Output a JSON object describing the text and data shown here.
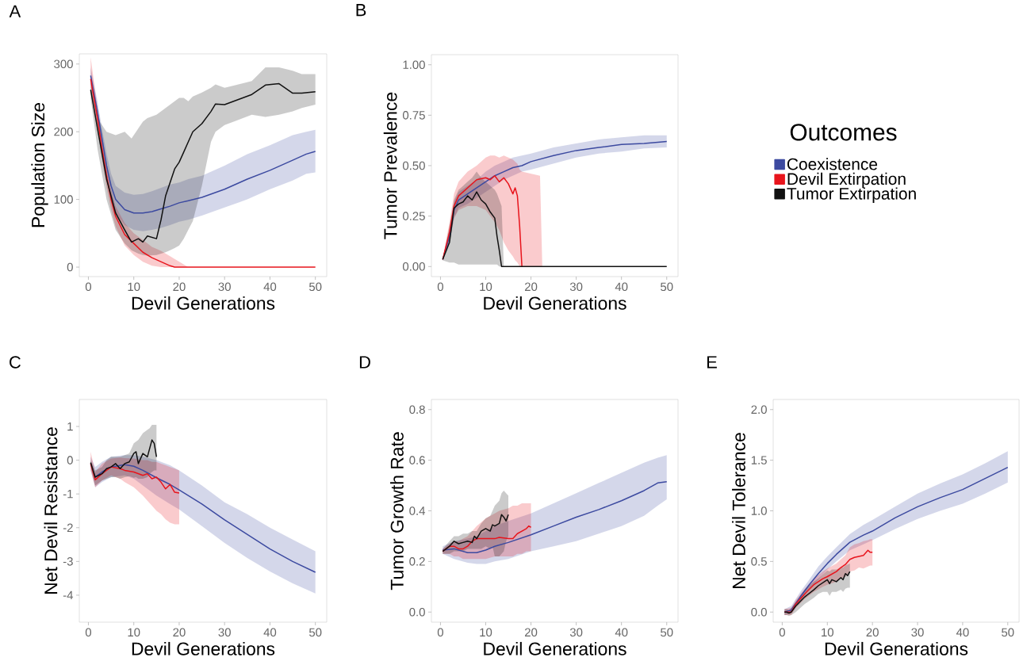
{
  "chart_data": [
    {
      "type": "line",
      "title": "A",
      "xlabel": "Devil Generations",
      "ylabel": "Population Size",
      "xlim": [
        -2,
        52.5
      ],
      "ylim": [
        -14,
        315
      ],
      "xticks": [
        0,
        10,
        20,
        30,
        40,
        50
      ],
      "yticks": [
        0,
        100,
        200,
        300
      ],
      "legend": false,
      "series": [
        {
          "color": "#3c4aa0",
          "x": [
            0.5,
            2,
            3,
            4,
            5,
            6,
            8,
            10,
            12,
            14,
            16,
            18,
            20,
            22,
            25,
            30,
            35,
            40,
            45,
            48,
            50
          ],
          "values": [
            283,
            230,
            190,
            150,
            120,
            100,
            85,
            80,
            80,
            82,
            86,
            90,
            95,
            98,
            103,
            115,
            130,
            143,
            158,
            167,
            171
          ],
          "lower": [
            270,
            215,
            175,
            135,
            105,
            80,
            62,
            55,
            53,
            55,
            58,
            62,
            67,
            70,
            76,
            88,
            100,
            115,
            128,
            138,
            140
          ],
          "upper": [
            295,
            245,
            205,
            168,
            138,
            120,
            110,
            107,
            108,
            112,
            117,
            122,
            125,
            130,
            135,
            150,
            167,
            180,
            195,
            200,
            203
          ]
        },
        {
          "color": "#e8141c",
          "x": [
            0.5,
            2,
            3,
            4,
            5,
            6,
            8,
            10,
            12,
            14,
            16,
            18,
            19,
            22,
            30,
            40,
            50
          ],
          "values": [
            278,
            220,
            175,
            135,
            100,
            75,
            48,
            35,
            22,
            14,
            8,
            2,
            0,
            0,
            0,
            0,
            0
          ],
          "lower": [
            265,
            205,
            160,
            118,
            85,
            60,
            32,
            18,
            8,
            2,
            0,
            0,
            0,
            0,
            0,
            0,
            0
          ],
          "upper": [
            310,
            235,
            190,
            150,
            115,
            90,
            65,
            50,
            40,
            30,
            24,
            16,
            12,
            0,
            0,
            0,
            0
          ]
        },
        {
          "color": "#111111",
          "x": [
            0.5,
            2,
            4,
            6,
            8,
            9.5,
            11,
            12,
            13,
            15,
            16,
            17,
            18,
            19,
            20,
            21,
            22,
            23,
            25,
            27,
            28,
            30,
            32,
            36,
            39,
            42,
            45,
            47,
            50
          ],
          "values": [
            262,
            205,
            130,
            80,
            55,
            37,
            42,
            37,
            46,
            42,
            70,
            105,
            125,
            145,
            155,
            170,
            185,
            200,
            212,
            230,
            241,
            240,
            245,
            255,
            269,
            271,
            257,
            257,
            259
          ],
          "lower": [
            250,
            175,
            100,
            55,
            35,
            25,
            20,
            18,
            17,
            18,
            20,
            22,
            25,
            28,
            32,
            42,
            55,
            68,
            120,
            185,
            200,
            210,
            215,
            225,
            222,
            225,
            230,
            235,
            240
          ],
          "upper": [
            275,
            220,
            200,
            195,
            200,
            190,
            205,
            215,
            220,
            225,
            230,
            235,
            240,
            245,
            250,
            250,
            245,
            252,
            258,
            265,
            270,
            265,
            268,
            275,
            295,
            295,
            290,
            285,
            285
          ]
        }
      ]
    },
    {
      "type": "line",
      "title": "B",
      "xlabel": "Devil Generations",
      "ylabel": "Tumor Prevalence",
      "xlim": [
        -2,
        52.5
      ],
      "ylim": [
        -0.05,
        1.05
      ],
      "xticks": [
        0,
        10,
        20,
        30,
        40,
        50
      ],
      "yticks": [
        {
          "value": 0,
          "label": "0.00"
        },
        {
          "value": 0.25,
          "label": "0.25"
        },
        {
          "value": 0.5,
          "label": "0.50"
        },
        {
          "value": 0.75,
          "label": "0.75"
        },
        {
          "value": 1,
          "label": "1.00"
        }
      ],
      "legend": "right",
      "legend_title": "Outcomes",
      "series": [
        {
          "name": "Coexistence",
          "color": "#3c4aa0",
          "x": [
            0.5,
            2,
            3,
            4,
            6,
            8,
            10,
            12,
            14,
            16,
            18,
            20,
            25,
            30,
            35,
            40,
            45,
            50
          ],
          "values": [
            0.035,
            0.15,
            0.28,
            0.33,
            0.36,
            0.39,
            0.42,
            0.45,
            0.47,
            0.49,
            0.5,
            0.52,
            0.55,
            0.575,
            0.59,
            0.605,
            0.61,
            0.62
          ],
          "lower": [
            0.03,
            0.12,
            0.24,
            0.29,
            0.31,
            0.34,
            0.37,
            0.4,
            0.43,
            0.45,
            0.47,
            0.48,
            0.51,
            0.54,
            0.56,
            0.57,
            0.585,
            0.59
          ],
          "upper": [
            0.04,
            0.18,
            0.32,
            0.37,
            0.4,
            0.43,
            0.47,
            0.5,
            0.52,
            0.54,
            0.55,
            0.56,
            0.59,
            0.61,
            0.63,
            0.64,
            0.65,
            0.65
          ]
        },
        {
          "name": "Devil Extirpation",
          "color": "#e8141c",
          "x": [
            0.5,
            2,
            3,
            4,
            6,
            8,
            10,
            11,
            12,
            13,
            14,
            15,
            16,
            16.5,
            17,
            17.5,
            18,
            22,
            22.5,
            30,
            50
          ],
          "values": [
            0.035,
            0.17,
            0.3,
            0.35,
            0.39,
            0.43,
            0.44,
            0.43,
            0.45,
            0.42,
            0.44,
            0.41,
            0.36,
            0.39,
            0.35,
            0.2,
            0,
            null,
            null,
            null,
            null
          ],
          "lower": [
            0.03,
            0.12,
            0.24,
            0.28,
            0.3,
            0.3,
            0.28,
            0.25,
            0.22,
            0.18,
            0.12,
            0.08,
            0.05,
            0.03,
            0.02,
            0,
            0,
            0,
            0,
            0,
            0
          ],
          "upper": [
            0.04,
            0.22,
            0.36,
            0.42,
            0.47,
            0.5,
            0.54,
            0.55,
            0.55,
            0.54,
            0.55,
            0.54,
            0.53,
            0.52,
            0.51,
            0.48,
            0.47,
            0.45,
            0,
            0,
            0
          ]
        },
        {
          "name": "Tumor Extirpation",
          "color": "#111111",
          "x": [
            0.5,
            2,
            3,
            4,
            5,
            6,
            7,
            8,
            9,
            10,
            11,
            12,
            12.5,
            13,
            13.5,
            14,
            20,
            50
          ],
          "values": [
            0.035,
            0.12,
            0.29,
            0.31,
            0.32,
            0.35,
            0.33,
            0.37,
            0.33,
            0.31,
            0.27,
            0.24,
            0.15,
            0.08,
            0,
            0,
            0,
            0
          ],
          "lower": [
            0.03,
            0.02,
            0.02,
            0.01,
            0.01,
            0.01,
            0.01,
            0.01,
            0.01,
            0.01,
            0.01,
            0.01,
            0.01,
            0,
            0,
            0,
            0,
            0
          ],
          "upper": [
            0.04,
            0.2,
            0.33,
            0.38,
            0.4,
            0.42,
            0.44,
            0.47,
            0.44,
            0.42,
            0.4,
            0.38,
            0.36,
            0.33,
            0.3,
            0,
            0,
            0
          ]
        }
      ]
    },
    {
      "type": "line",
      "title": "C",
      "xlabel": "Devil Generations",
      "ylabel": "Net Devil Resistance",
      "xlim": [
        -2,
        52.5
      ],
      "ylim": [
        -4.8,
        1.8
      ],
      "xticks": [
        0,
        10,
        20,
        30,
        40,
        50
      ],
      "yticks": [
        -4,
        -3,
        -2,
        -1,
        0,
        1
      ],
      "legend": false,
      "series": [
        {
          "color": "#3c4aa0",
          "x": [
            0.5,
            1.5,
            3,
            5,
            8,
            10,
            12,
            15,
            18,
            20,
            25,
            30,
            35,
            40,
            45,
            50
          ],
          "values": [
            -0.1,
            -0.5,
            -0.35,
            -0.2,
            -0.13,
            -0.18,
            -0.3,
            -0.52,
            -0.72,
            -0.88,
            -1.3,
            -1.77,
            -2.2,
            -2.63,
            -3.0,
            -3.32
          ],
          "lower": [
            -0.3,
            -0.8,
            -0.65,
            -0.5,
            -0.45,
            -0.55,
            -0.75,
            -1.05,
            -1.3,
            -1.46,
            -1.95,
            -2.45,
            -2.9,
            -3.3,
            -3.65,
            -3.95
          ],
          "upper": [
            0.1,
            -0.2,
            -0.05,
            0.1,
            0.15,
            0.15,
            0.1,
            0.0,
            -0.15,
            -0.3,
            -0.75,
            -1.25,
            -1.6,
            -2.0,
            -2.35,
            -2.7
          ]
        },
        {
          "color": "#e8141c",
          "x": [
            0.5,
            1.5,
            3,
            5,
            7,
            8,
            10,
            12,
            13,
            14,
            15,
            16,
            17,
            18,
            19,
            20
          ],
          "values": [
            -0.1,
            -0.58,
            -0.4,
            -0.2,
            -0.25,
            -0.3,
            -0.35,
            -0.45,
            -0.4,
            -0.55,
            -0.5,
            -0.65,
            -0.85,
            -0.72,
            -0.95,
            -0.97
          ],
          "lower": [
            -0.3,
            -0.8,
            -0.6,
            -0.45,
            -0.55,
            -0.65,
            -0.8,
            -1.05,
            -1.2,
            -1.35,
            -1.5,
            -1.6,
            -1.75,
            -1.85,
            -1.9,
            -1.9
          ],
          "upper": [
            0.25,
            -0.35,
            -0.1,
            0.05,
            0.08,
            0.06,
            0.05,
            0.0,
            0.0,
            -0.05,
            -0.05,
            -0.1,
            -0.15,
            -0.2,
            -0.25,
            -0.3
          ]
        },
        {
          "color": "#111111",
          "x": [
            0.5,
            1.5,
            3,
            4,
            5,
            6,
            7,
            8,
            9,
            10,
            10.5,
            11,
            12,
            13,
            13.5,
            14,
            14.5,
            15
          ],
          "values": [
            -0.07,
            -0.5,
            -0.4,
            -0.25,
            -0.2,
            -0.1,
            -0.25,
            -0.1,
            -0.05,
            0.2,
            0.25,
            -0.1,
            0.2,
            0.1,
            0.35,
            0.6,
            0.5,
            0.1
          ],
          "lower": [
            -0.2,
            -0.75,
            -0.6,
            -0.55,
            -0.5,
            -0.5,
            -0.55,
            -0.5,
            -0.47,
            -0.52,
            -0.5,
            -0.55,
            -0.55,
            -0.5,
            -0.4,
            -0.35,
            -0.3,
            -0.3
          ],
          "upper": [
            0.0,
            -0.3,
            -0.2,
            0.0,
            0.1,
            0.1,
            0.1,
            0.15,
            0.2,
            0.5,
            0.55,
            0.6,
            0.8,
            0.9,
            0.95,
            1.05,
            1.05,
            1.05
          ]
        }
      ]
    },
    {
      "type": "line",
      "title": "D",
      "xlabel": "Devil Generations",
      "ylabel": "Tumor Growth Rate",
      "xlim": [
        -2,
        52.5
      ],
      "ylim": [
        -0.04,
        0.84
      ],
      "xticks": [
        0,
        10,
        20,
        30,
        40,
        50
      ],
      "yticks": [
        {
          "value": 0,
          "label": "0.0"
        },
        0.2,
        0.4,
        0.6,
        0.8
      ],
      "legend": false,
      "series": [
        {
          "color": "#3c4aa0",
          "x": [
            0.5,
            3,
            6,
            8,
            10,
            12,
            15,
            20,
            25,
            30,
            35,
            40,
            45,
            48,
            50
          ],
          "values": [
            0.245,
            0.25,
            0.235,
            0.235,
            0.245,
            0.26,
            0.275,
            0.305,
            0.34,
            0.375,
            0.405,
            0.44,
            0.48,
            0.51,
            0.515
          ],
          "lower": [
            0.23,
            0.21,
            0.195,
            0.19,
            0.19,
            0.2,
            0.21,
            0.24,
            0.26,
            0.28,
            0.31,
            0.34,
            0.38,
            0.42,
            0.445
          ],
          "upper": [
            0.26,
            0.28,
            0.29,
            0.3,
            0.32,
            0.34,
            0.36,
            0.39,
            0.43,
            0.47,
            0.51,
            0.55,
            0.59,
            0.61,
            0.62
          ]
        },
        {
          "color": "#e8141c",
          "x": [
            0.5,
            2,
            3,
            4,
            5,
            6,
            7,
            8,
            10,
            12,
            13,
            15,
            16,
            17,
            18,
            19,
            19.5,
            20
          ],
          "values": [
            0.24,
            0.26,
            0.26,
            0.25,
            0.25,
            0.26,
            0.28,
            0.29,
            0.29,
            0.29,
            0.295,
            0.29,
            0.29,
            0.31,
            0.32,
            0.33,
            0.34,
            0.335
          ],
          "lower": [
            0.23,
            0.23,
            0.22,
            0.22,
            0.21,
            0.21,
            0.21,
            0.21,
            0.21,
            0.22,
            0.22,
            0.22,
            0.22,
            0.23,
            0.23,
            0.24,
            0.24,
            0.24
          ],
          "upper": [
            0.25,
            0.27,
            0.28,
            0.28,
            0.29,
            0.3,
            0.32,
            0.34,
            0.37,
            0.39,
            0.4,
            0.41,
            0.42,
            0.42,
            0.43,
            0.43,
            0.43,
            0.43
          ]
        },
        {
          "color": "#111111",
          "x": [
            0.5,
            2,
            3,
            4,
            5,
            6,
            7,
            7.5,
            8,
            9,
            10,
            11,
            11.5,
            12,
            13,
            13.5,
            14,
            14.5,
            15
          ],
          "values": [
            0.24,
            0.26,
            0.28,
            0.27,
            0.275,
            0.28,
            0.275,
            0.3,
            0.29,
            0.32,
            0.33,
            0.32,
            0.345,
            0.34,
            0.35,
            0.385,
            0.375,
            0.36,
            0.385
          ],
          "lower": [
            0.23,
            0.23,
            0.24,
            0.24,
            0.24,
            0.25,
            0.25,
            0.25,
            0.25,
            0.25,
            0.26,
            0.25,
            0.26,
            0.22,
            0.22,
            0.23,
            0.24,
            0.28,
            0.3
          ],
          "upper": [
            0.25,
            0.28,
            0.3,
            0.3,
            0.31,
            0.31,
            0.32,
            0.32,
            0.32,
            0.35,
            0.37,
            0.38,
            0.4,
            0.42,
            0.44,
            0.47,
            0.48,
            0.47,
            0.46
          ]
        }
      ]
    },
    {
      "type": "line",
      "title": "E",
      "xlabel": "Devil Generations",
      "ylabel": "Net Devil Tolerance",
      "xlim": [
        -2,
        52.5
      ],
      "ylim": [
        -0.1,
        2.1
      ],
      "xticks": [
        0,
        10,
        20,
        30,
        40,
        50
      ],
      "yticks": [
        {
          "value": 0,
          "label": "0.0"
        },
        0.5,
        {
          "value": 1,
          "label": "1.0"
        },
        1.5,
        {
          "value": 2,
          "label": "2.0"
        }
      ],
      "legend": false,
      "series": [
        {
          "color": "#3c4aa0",
          "x": [
            0.5,
            2,
            4,
            6,
            8,
            10,
            12,
            15,
            18,
            20,
            25,
            30,
            35,
            40,
            45,
            50
          ],
          "values": [
            0.0,
            0.02,
            0.15,
            0.27,
            0.38,
            0.48,
            0.57,
            0.69,
            0.76,
            0.8,
            0.93,
            1.04,
            1.13,
            1.21,
            1.32,
            1.43
          ],
          "lower": [
            -0.03,
            -0.01,
            0.11,
            0.22,
            0.32,
            0.42,
            0.5,
            0.61,
            0.67,
            0.71,
            0.82,
            0.92,
            1.0,
            1.07,
            1.17,
            1.28
          ],
          "upper": [
            0.03,
            0.06,
            0.2,
            0.32,
            0.45,
            0.55,
            0.64,
            0.77,
            0.86,
            0.91,
            1.04,
            1.17,
            1.27,
            1.36,
            1.47,
            1.59
          ]
        },
        {
          "color": "#e8141c",
          "x": [
            0.5,
            2,
            3,
            5,
            7,
            9,
            10,
            12,
            13,
            14,
            15,
            16,
            17,
            18,
            19,
            19.5,
            20
          ],
          "values": [
            0.0,
            0.0,
            0.08,
            0.18,
            0.27,
            0.33,
            0.35,
            0.4,
            0.44,
            0.47,
            0.52,
            0.54,
            0.55,
            0.56,
            0.61,
            0.59,
            0.59
          ],
          "lower": [
            -0.03,
            -0.03,
            0.04,
            0.13,
            0.2,
            0.25,
            0.27,
            0.3,
            0.33,
            0.35,
            0.4,
            0.41,
            0.44,
            0.43,
            0.45,
            0.46,
            0.46
          ],
          "upper": [
            0.03,
            0.04,
            0.12,
            0.23,
            0.33,
            0.4,
            0.43,
            0.48,
            0.52,
            0.56,
            0.64,
            0.67,
            0.68,
            0.7,
            0.71,
            0.72,
            0.72
          ]
        },
        {
          "color": "#111111",
          "x": [
            0.5,
            1,
            1.5,
            2,
            3,
            5,
            7,
            8,
            9,
            10,
            10.5,
            11,
            12,
            13,
            13.5,
            14,
            14.5,
            15
          ],
          "values": [
            0.0,
            0.0,
            -0.01,
            0.0,
            0.06,
            0.15,
            0.22,
            0.26,
            0.29,
            0.32,
            0.28,
            0.32,
            0.3,
            0.34,
            0.32,
            0.38,
            0.36,
            0.4
          ],
          "lower": [
            -0.03,
            -0.03,
            -0.04,
            -0.03,
            0.0,
            0.08,
            0.14,
            0.18,
            0.2,
            0.2,
            0.16,
            0.2,
            0.2,
            0.22,
            0.2,
            0.23,
            0.24,
            0.24
          ],
          "upper": [
            0.03,
            0.03,
            0.02,
            0.04,
            0.1,
            0.22,
            0.3,
            0.33,
            0.37,
            0.41,
            0.4,
            0.42,
            0.42,
            0.44,
            0.44,
            0.46,
            0.47,
            0.48
          ]
        }
      ]
    }
  ]
}
